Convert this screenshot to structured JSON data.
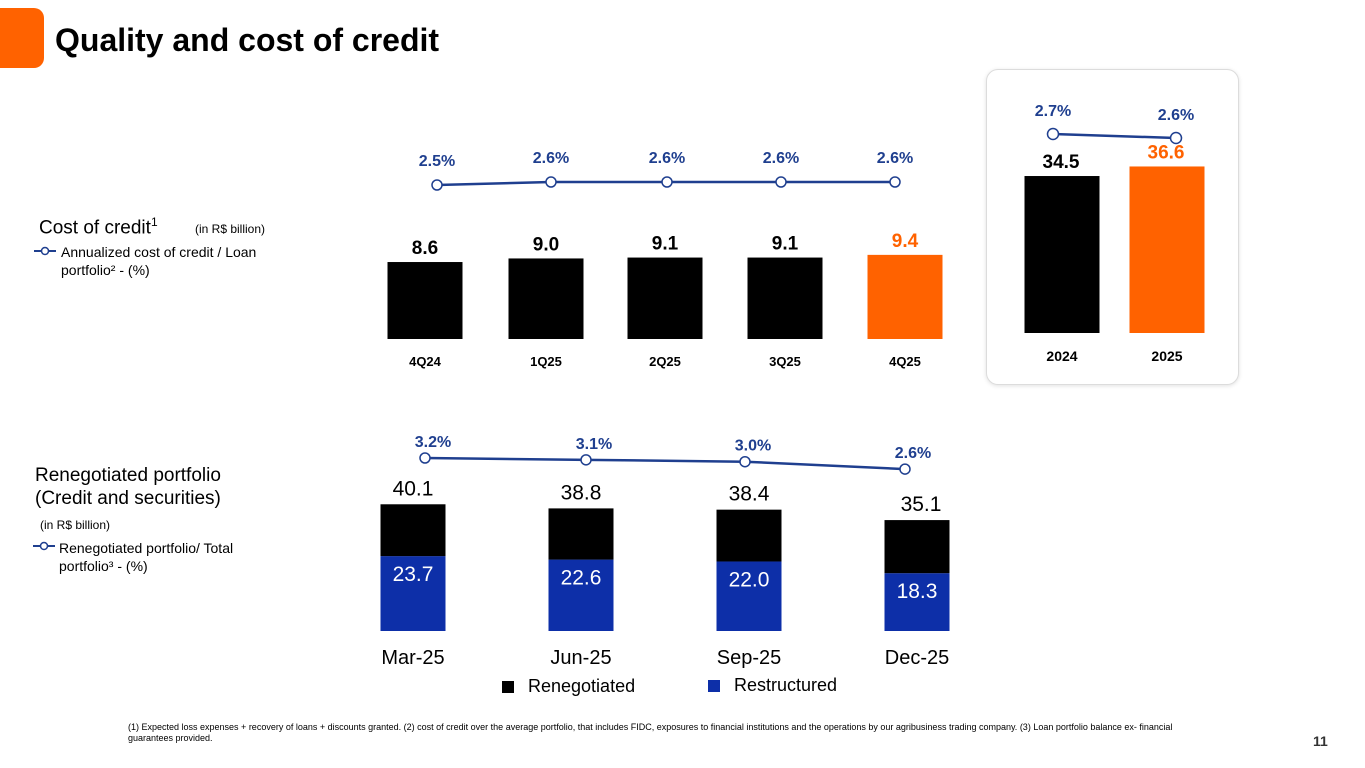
{
  "title": "Quality and cost of credit",
  "colors": {
    "accent": "#ff6200",
    "black": "#000000",
    "navy": "#1e3a8a",
    "blue": "#0d2fa8",
    "line": "#1f3f8f"
  },
  "cost_legend": {
    "title": "Cost of credit",
    "title_sup": "1",
    "unit": "(in R$ billion)",
    "line1": "Annualized cost of credit / Loan",
    "line2": "portfolio² - (%)"
  },
  "reneg_legend": {
    "title1": "Renegotiated portfolio",
    "title2": "(Credit and securities)",
    "unit": "(in R$ billion)",
    "line1": "Renegotiated portfolio/ Total",
    "line2": "portfolio³ - (%)"
  },
  "bottom_legend": {
    "renegotiated": "Renegotiated",
    "restructured": "Restructured"
  },
  "footnote": "(1) Expected loss expenses + recovery of loans + discounts granted. (2) cost of credit over the average portfolio, that includes FIDC, exposures to financial institutions and the operations by our agribusiness trading company. (3) Loan portfolio balance ex- financial guarantees provided.",
  "page_number": "11",
  "chart_data": [
    {
      "type": "bar",
      "title": "Cost of credit (in R$ billion)",
      "categories": [
        "4Q24",
        "1Q25",
        "2Q25",
        "3Q25",
        "4Q25"
      ],
      "values": [
        8.6,
        9.0,
        9.1,
        9.1,
        9.4
      ],
      "value_labels": [
        "8.6",
        "9.0",
        "9.1",
        "9.1",
        "9.4"
      ],
      "highlight_index": 4,
      "line_series": {
        "name": "Annualized cost of credit / Loan portfolio (%)",
        "values": [
          2.5,
          2.6,
          2.6,
          2.6,
          2.6
        ],
        "labels": [
          "2.5%",
          "2.6%",
          "2.6%",
          "2.6%",
          "2.6%"
        ]
      }
    },
    {
      "type": "bar",
      "title": "Cost of credit annual (in R$ billion)",
      "categories": [
        "2024",
        "2025"
      ],
      "values": [
        34.5,
        36.6
      ],
      "value_labels": [
        "34.5",
        "36.6"
      ],
      "highlight_index": 1,
      "line_series": {
        "name": "Annualized cost of credit / Loan portfolio (%)",
        "values": [
          2.7,
          2.6
        ],
        "labels": [
          "2.7%",
          "2.6%"
        ]
      }
    },
    {
      "type": "bar",
      "stacked": true,
      "title": "Renegotiated portfolio (Credit and securities) (in R$ billion)",
      "categories": [
        "Mar-25",
        "Jun-25",
        "Sep-25",
        "Dec-25"
      ],
      "totals": [
        40.1,
        38.8,
        38.4,
        35.1
      ],
      "total_labels": [
        "40.1",
        "38.8",
        "38.4",
        "35.1"
      ],
      "series": [
        {
          "name": "Restructured",
          "values": [
            23.7,
            22.6,
            22.0,
            18.3
          ],
          "labels": [
            "23.7",
            "22.6",
            "22.0",
            "18.3"
          ]
        },
        {
          "name": "Renegotiated",
          "values": [
            16.4,
            16.2,
            16.4,
            16.8
          ]
        }
      ],
      "line_series": {
        "name": "Renegotiated portfolio / Total portfolio (%)",
        "values": [
          3.2,
          3.1,
          3.0,
          2.6
        ],
        "labels": [
          "3.2%",
          "3.1%",
          "3.0%",
          "2.6%"
        ]
      }
    }
  ]
}
